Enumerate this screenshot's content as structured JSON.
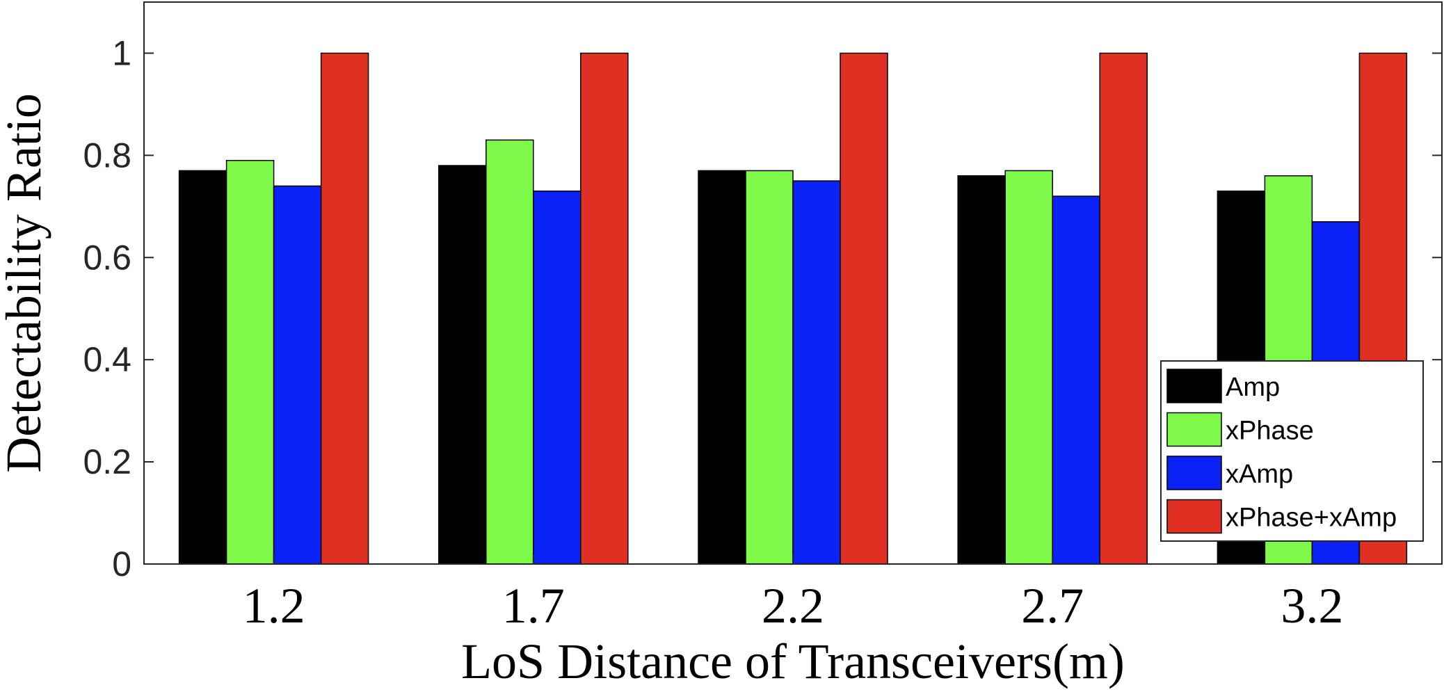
{
  "chart_data": {
    "type": "bar",
    "categories": [
      "1.2",
      "1.7",
      "2.2",
      "2.7",
      "3.2"
    ],
    "series": [
      {
        "name": "Amp",
        "color": "#000000",
        "values": [
          0.77,
          0.78,
          0.77,
          0.76,
          0.73
        ]
      },
      {
        "name": "xPhase",
        "color": "#7ef94a",
        "values": [
          0.79,
          0.83,
          0.77,
          0.77,
          0.76
        ]
      },
      {
        "name": "xAmp",
        "color": "#0a22f5",
        "values": [
          0.74,
          0.73,
          0.75,
          0.72,
          0.67
        ]
      },
      {
        "name": "xPhase+xAmp",
        "color": "#e03024",
        "values": [
          1,
          1,
          1,
          1,
          1
        ]
      }
    ],
    "xlabel": "LoS Distance of Transceivers(m)",
    "ylabel": "Detectability Ratio",
    "ylim": [
      0,
      1.1
    ],
    "yticks": [
      "0",
      "0.2",
      "0.4",
      "0.6",
      "0.8",
      "1"
    ],
    "grid": false,
    "legend_position": "bottom-right"
  }
}
